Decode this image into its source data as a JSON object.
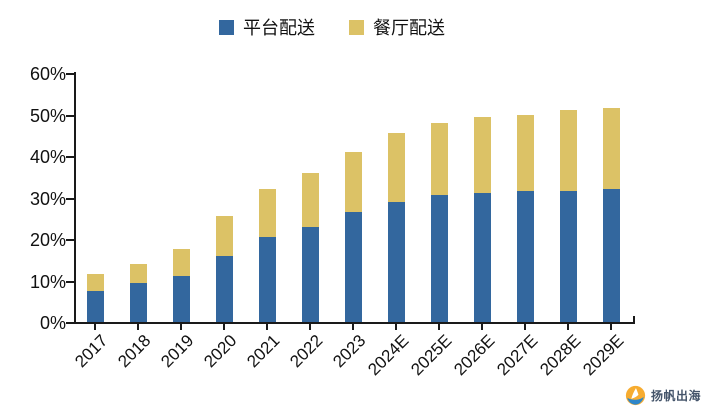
{
  "chart_data": {
    "type": "stacked_bar",
    "categories": [
      "2017",
      "2018",
      "2019",
      "2020",
      "2021",
      "2022",
      "2023",
      "2024E",
      "2025E",
      "2026E",
      "2027E",
      "2028E",
      "2029E"
    ],
    "series": [
      {
        "name": "平台配送",
        "color": "#33679E",
        "values": [
          7.5,
          9.5,
          11,
          16,
          20.5,
          23,
          26.5,
          29,
          30.5,
          31,
          31.5,
          31.5,
          32
        ]
      },
      {
        "name": "餐厅配送",
        "color": "#DCC266",
        "values": [
          4,
          4.5,
          6.5,
          9.5,
          11.5,
          13,
          14.5,
          16.5,
          17.5,
          18.5,
          18.5,
          19.5,
          19.5
        ]
      }
    ],
    "title": "",
    "xlabel": "",
    "ylabel": "",
    "ylim": [
      0,
      60
    ],
    "ytick_step": 10,
    "ytick_labels": [
      "0%",
      "10%",
      "20%",
      "30%",
      "40%",
      "50%",
      "60%"
    ],
    "grid": false,
    "legend_position": "top"
  },
  "watermark": {
    "text": "扬帆出海"
  },
  "colors": {
    "axis": "#1a1a1a",
    "background": "#ffffff",
    "platform_blue": "#33679E",
    "restaurant_yellow": "#DCC266",
    "logo_orange": "#F7AC30",
    "logo_wave_blue": "#2E86C9",
    "watermark_text": "#44546A"
  }
}
